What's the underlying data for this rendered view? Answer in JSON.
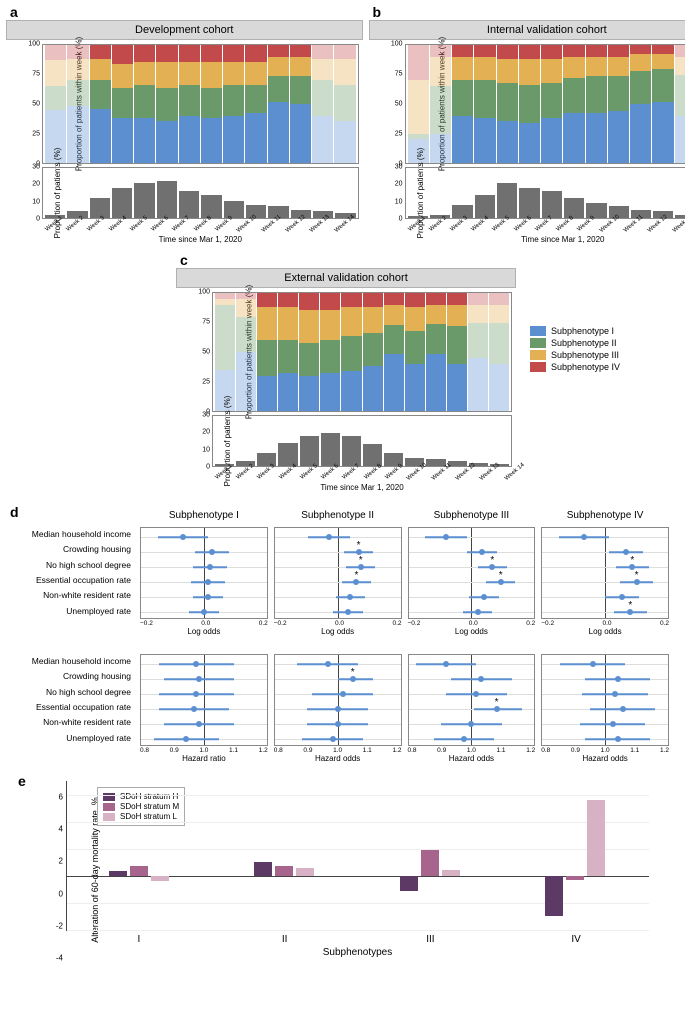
{
  "colors": {
    "sub1": "#5b8fd0",
    "sub2": "#6a9a6a",
    "sub3": "#e3b054",
    "sub4": "#c24a4a",
    "hist": "#707070",
    "e_H": "#5d3a66",
    "e_M": "#a7648c",
    "e_L": "#d6b2c4",
    "grid": "#e0e0e0",
    "axis": "#444444",
    "dot": "#5b8fd0"
  },
  "legend_labels": [
    "Subphenotype I",
    "Subphenotype II",
    "Subphenotype III",
    "Subphenotype IV"
  ],
  "x_weeks": [
    "Week 1",
    "Week 2",
    "Week 3",
    "Week 4",
    "Week 5",
    "Week 6",
    "Week 7",
    "Week 8",
    "Week 9",
    "Week 10",
    "Week 11",
    "Week 12",
    "Week 13",
    "Week 14"
  ],
  "x_axis_title": "Time since Mar 1, 2020",
  "stacked_y_label": "Proportion of patients\nwithin week (%)",
  "hist_y_label": "Proportion of\npatients (%)",
  "stacked_y_ticks": [
    0,
    25,
    50,
    75,
    100
  ],
  "hist_y_ticks": [
    0,
    10,
    20,
    30
  ],
  "panels_abc": {
    "a": {
      "label": "a",
      "title": "Development cohort",
      "faded": [
        0,
        1,
        12,
        13
      ],
      "stacked": [
        [
          45,
          20,
          22,
          13
        ],
        [
          48,
          22,
          18,
          12
        ],
        [
          46,
          24,
          18,
          12
        ],
        [
          38,
          26,
          20,
          16
        ],
        [
          38,
          28,
          20,
          14
        ],
        [
          36,
          28,
          22,
          14
        ],
        [
          40,
          26,
          20,
          14
        ],
        [
          38,
          26,
          22,
          14
        ],
        [
          40,
          26,
          20,
          14
        ],
        [
          42,
          24,
          20,
          14
        ],
        [
          52,
          22,
          16,
          10
        ],
        [
          50,
          24,
          16,
          10
        ],
        [
          40,
          30,
          18,
          12
        ],
        [
          36,
          30,
          22,
          12
        ]
      ],
      "hist": [
        2,
        4,
        12,
        18,
        21,
        22,
        16,
        14,
        10,
        8,
        7,
        5,
        4,
        3
      ]
    },
    "b": {
      "label": "b",
      "title": "Internal validation cohort",
      "faded": [
        0,
        1,
        12,
        13
      ],
      "stacked": [
        [
          20,
          5,
          45,
          30
        ],
        [
          25,
          40,
          25,
          10
        ],
        [
          40,
          30,
          20,
          10
        ],
        [
          38,
          32,
          20,
          10
        ],
        [
          36,
          32,
          20,
          12
        ],
        [
          34,
          32,
          22,
          12
        ],
        [
          38,
          30,
          20,
          12
        ],
        [
          42,
          30,
          18,
          10
        ],
        [
          42,
          32,
          16,
          10
        ],
        [
          44,
          30,
          16,
          10
        ],
        [
          50,
          28,
          14,
          8
        ],
        [
          52,
          28,
          12,
          8
        ],
        [
          40,
          35,
          15,
          10
        ],
        [
          30,
          45,
          15,
          10
        ]
      ],
      "hist": [
        1,
        2,
        8,
        14,
        21,
        18,
        16,
        12,
        9,
        7,
        5,
        4,
        2,
        1
      ]
    },
    "c": {
      "label": "c",
      "title": "External validation cohort",
      "faded": [
        0,
        1,
        12,
        13
      ],
      "stacked": [
        [
          35,
          55,
          5,
          5
        ],
        [
          50,
          30,
          15,
          5
        ],
        [
          30,
          30,
          28,
          12
        ],
        [
          32,
          28,
          28,
          12
        ],
        [
          30,
          28,
          28,
          14
        ],
        [
          32,
          28,
          26,
          14
        ],
        [
          34,
          30,
          24,
          12
        ],
        [
          38,
          28,
          22,
          12
        ],
        [
          48,
          25,
          17,
          10
        ],
        [
          40,
          28,
          20,
          12
        ],
        [
          48,
          26,
          16,
          10
        ],
        [
          40,
          32,
          18,
          10
        ],
        [
          45,
          30,
          15,
          10
        ],
        [
          40,
          35,
          15,
          10
        ]
      ],
      "hist": [
        1,
        3,
        8,
        14,
        18,
        20,
        18,
        13,
        8,
        5,
        4,
        3,
        2,
        1
      ]
    }
  },
  "panel_d": {
    "label": "d",
    "col_titles": [
      "Subphenotype I",
      "Subphenotype II",
      "Subphenotype III",
      "Subphenotype IV"
    ],
    "row_labels": [
      "Median household income",
      "Crowding housing",
      "No high school degree",
      "Essential occupation rate",
      "Non-white resident rate",
      "Unemployed rate"
    ],
    "top": {
      "x_title": "Log odds",
      "xlim": [
        -0.3,
        0.3
      ],
      "x_ticks": [
        "−0.2",
        "0.0",
        "0.2"
      ],
      "cols": [
        [
          {
            "est": -0.1,
            "lo": -0.22,
            "hi": 0.02
          },
          {
            "est": 0.04,
            "lo": -0.04,
            "hi": 0.12
          },
          {
            "est": 0.03,
            "lo": -0.05,
            "hi": 0.11
          },
          {
            "est": 0.02,
            "lo": -0.06,
            "hi": 0.1
          },
          {
            "est": 0.02,
            "lo": -0.05,
            "hi": 0.09
          },
          {
            "est": 0.0,
            "lo": -0.07,
            "hi": 0.07
          }
        ],
        [
          {
            "est": -0.04,
            "lo": -0.14,
            "hi": 0.06
          },
          {
            "est": 0.1,
            "lo": 0.03,
            "hi": 0.17,
            "sig": true
          },
          {
            "est": 0.11,
            "lo": 0.04,
            "hi": 0.18,
            "sig": true
          },
          {
            "est": 0.09,
            "lo": 0.02,
            "hi": 0.16,
            "sig": true
          },
          {
            "est": 0.06,
            "lo": -0.01,
            "hi": 0.13
          },
          {
            "est": 0.05,
            "lo": -0.02,
            "hi": 0.12
          }
        ],
        [
          {
            "est": -0.12,
            "lo": -0.22,
            "hi": -0.02
          },
          {
            "est": 0.05,
            "lo": -0.02,
            "hi": 0.12
          },
          {
            "est": 0.1,
            "lo": 0.03,
            "hi": 0.17,
            "sig": true
          },
          {
            "est": 0.14,
            "lo": 0.07,
            "hi": 0.21,
            "sig": true
          },
          {
            "est": 0.06,
            "lo": -0.01,
            "hi": 0.13
          },
          {
            "est": 0.03,
            "lo": -0.04,
            "hi": 0.1
          }
        ],
        [
          {
            "est": -0.1,
            "lo": -0.22,
            "hi": 0.02
          },
          {
            "est": 0.1,
            "lo": 0.02,
            "hi": 0.18
          },
          {
            "est": 0.13,
            "lo": 0.05,
            "hi": 0.21,
            "sig": true
          },
          {
            "est": 0.15,
            "lo": 0.07,
            "hi": 0.23,
            "sig": true
          },
          {
            "est": 0.08,
            "lo": 0.0,
            "hi": 0.16
          },
          {
            "est": 0.12,
            "lo": 0.04,
            "hi": 0.2,
            "sig": true
          }
        ]
      ]
    },
    "bottom": {
      "x_title_col": [
        "Hazard ratio",
        "Hazard odds",
        "Hazard odds",
        "Hazard odds"
      ],
      "xlim": [
        0.75,
        1.25
      ],
      "x_ticks": [
        "0.8",
        "0.9",
        "1.0",
        "1.1",
        "1.2"
      ],
      "cols": [
        [
          {
            "est": 0.97,
            "lo": 0.82,
            "hi": 1.12
          },
          {
            "est": 0.98,
            "lo": 0.84,
            "hi": 1.12
          },
          {
            "est": 0.97,
            "lo": 0.82,
            "hi": 1.12
          },
          {
            "est": 0.96,
            "lo": 0.82,
            "hi": 1.1
          },
          {
            "est": 0.98,
            "lo": 0.84,
            "hi": 1.12
          },
          {
            "est": 0.93,
            "lo": 0.8,
            "hi": 1.06
          }
        ],
        [
          {
            "est": 0.96,
            "lo": 0.84,
            "hi": 1.08
          },
          {
            "est": 1.06,
            "lo": 1.0,
            "hi": 1.14,
            "sig": true
          },
          {
            "est": 1.02,
            "lo": 0.9,
            "hi": 1.14
          },
          {
            "est": 1.0,
            "lo": 0.88,
            "hi": 1.12
          },
          {
            "est": 1.0,
            "lo": 0.88,
            "hi": 1.12
          },
          {
            "est": 0.98,
            "lo": 0.86,
            "hi": 1.1
          }
        ],
        [
          {
            "est": 0.9,
            "lo": 0.78,
            "hi": 1.02
          },
          {
            "est": 1.04,
            "lo": 0.92,
            "hi": 1.16
          },
          {
            "est": 1.02,
            "lo": 0.9,
            "hi": 1.14
          },
          {
            "est": 1.1,
            "lo": 1.01,
            "hi": 1.2,
            "sig": true
          },
          {
            "est": 1.0,
            "lo": 0.88,
            "hi": 1.12
          },
          {
            "est": 0.97,
            "lo": 0.85,
            "hi": 1.09
          }
        ],
        [
          {
            "est": 0.95,
            "lo": 0.82,
            "hi": 1.08
          },
          {
            "est": 1.05,
            "lo": 0.92,
            "hi": 1.18
          },
          {
            "est": 1.04,
            "lo": 0.91,
            "hi": 1.17
          },
          {
            "est": 1.07,
            "lo": 0.94,
            "hi": 1.2
          },
          {
            "est": 1.03,
            "lo": 0.9,
            "hi": 1.16
          },
          {
            "est": 1.05,
            "lo": 0.92,
            "hi": 1.18
          }
        ]
      ]
    }
  },
  "panel_e": {
    "label": "e",
    "y_label": "Alteration of 60-day mortality rate, %",
    "x_title": "Subphenotypes",
    "x_labels": [
      "I",
      "II",
      "III",
      "IV"
    ],
    "ylim": [
      -4,
      7
    ],
    "y_ticks": [
      -4,
      -2,
      0,
      2,
      4,
      6
    ],
    "legend": [
      "SDoH stratum H",
      "SDoH stratum M",
      "SDoH stratum L"
    ],
    "groups": [
      [
        0.35,
        0.7,
        -0.4
      ],
      [
        1.0,
        0.75,
        0.6
      ],
      [
        -1.1,
        1.9,
        0.45
      ],
      [
        -3.0,
        -0.3,
        5.6
      ]
    ]
  }
}
